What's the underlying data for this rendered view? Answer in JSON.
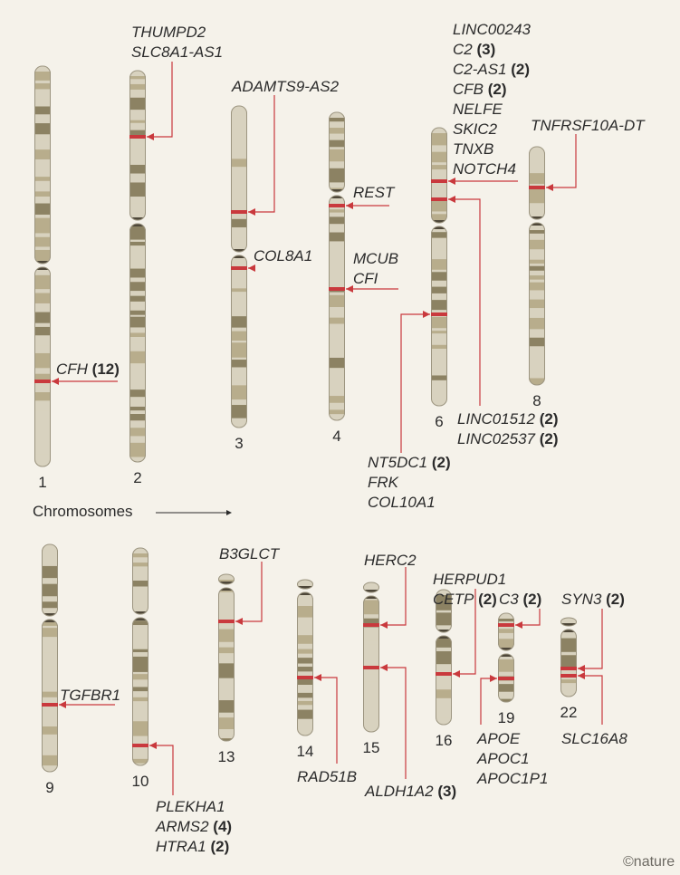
{
  "colors": {
    "background": "#f5f2ea",
    "band_light": "#d8d2bf",
    "band_mid": "#b8ad8c",
    "band_dark": "#8c8263",
    "centromere": "#4e4739",
    "marker": "#c9393d",
    "text": "#2b2b2b"
  },
  "axis_label": "Chromosomes",
  "logo": "©nature",
  "chromosomes": [
    {
      "id": "1"
    },
    {
      "id": "2"
    },
    {
      "id": "3"
    },
    {
      "id": "4"
    },
    {
      "id": "6"
    },
    {
      "id": "8"
    },
    {
      "id": "9"
    },
    {
      "id": "10"
    },
    {
      "id": "13"
    },
    {
      "id": "14"
    },
    {
      "id": "15"
    },
    {
      "id": "16"
    },
    {
      "id": "19"
    },
    {
      "id": "22"
    }
  ],
  "annotations": [
    {
      "chromosome": "1",
      "genes": [
        {
          "name": "CFH",
          "count": "(12)"
        }
      ]
    },
    {
      "chromosome": "2",
      "genes": [
        {
          "name": "THUMPD2"
        },
        {
          "name": "SLC8A1-AS1"
        }
      ]
    },
    {
      "chromosome": "3",
      "genes": [
        {
          "name": "ADAMTS9-AS2"
        }
      ]
    },
    {
      "chromosome": "3",
      "genes": [
        {
          "name": "COL8A1"
        }
      ]
    },
    {
      "chromosome": "4",
      "genes": [
        {
          "name": "REST"
        }
      ]
    },
    {
      "chromosome": "4",
      "genes": [
        {
          "name": "MCUB"
        },
        {
          "name": "CFI"
        }
      ]
    },
    {
      "chromosome": "6",
      "genes": [
        {
          "name": "LINC00243"
        },
        {
          "name": "C2",
          "count": "(3)"
        },
        {
          "name": "C2-AS1",
          "count": "(2)"
        },
        {
          "name": "CFB",
          "count": "(2)"
        },
        {
          "name": "NELFE"
        },
        {
          "name": "SKIC2"
        },
        {
          "name": "TNXB"
        },
        {
          "name": "NOTCH4"
        }
      ]
    },
    {
      "chromosome": "6",
      "genes": [
        {
          "name": "LINC01512",
          "count": "(2)"
        },
        {
          "name": "LINC02537",
          "count": "(2)"
        }
      ]
    },
    {
      "chromosome": "6",
      "genes": [
        {
          "name": "NT5DC1",
          "count": "(2)"
        },
        {
          "name": "FRK"
        },
        {
          "name": "COL10A1"
        }
      ]
    },
    {
      "chromosome": "8",
      "genes": [
        {
          "name": "TNFRSF10A-DT"
        }
      ]
    },
    {
      "chromosome": "9",
      "genes": [
        {
          "name": "TGFBR1"
        }
      ]
    },
    {
      "chromosome": "10",
      "genes": [
        {
          "name": "PLEKHA1"
        },
        {
          "name": "ARMS2",
          "count": "(4)"
        },
        {
          "name": "HTRA1",
          "count": "(2)"
        }
      ]
    },
    {
      "chromosome": "13",
      "genes": [
        {
          "name": "B3GLCT"
        }
      ]
    },
    {
      "chromosome": "14",
      "genes": [
        {
          "name": "RAD51B"
        }
      ]
    },
    {
      "chromosome": "15",
      "genes": [
        {
          "name": "HERC2"
        }
      ]
    },
    {
      "chromosome": "15",
      "genes": [
        {
          "name": "ALDH1A2",
          "count": "(3)"
        }
      ]
    },
    {
      "chromosome": "16",
      "genes": [
        {
          "name": "HERPUD1"
        },
        {
          "name": "CETP",
          "count": "(2)"
        }
      ]
    },
    {
      "chromosome": "19",
      "genes": [
        {
          "name": "C3",
          "count": "(2)"
        }
      ]
    },
    {
      "chromosome": "19",
      "genes": [
        {
          "name": "APOE"
        },
        {
          "name": "APOC1"
        },
        {
          "name": "APOC1P1"
        }
      ]
    },
    {
      "chromosome": "22",
      "genes": [
        {
          "name": "SYN3",
          "count": "(2)"
        }
      ]
    },
    {
      "chromosome": "22",
      "genes": [
        {
          "name": "SLC16A8"
        }
      ]
    }
  ]
}
